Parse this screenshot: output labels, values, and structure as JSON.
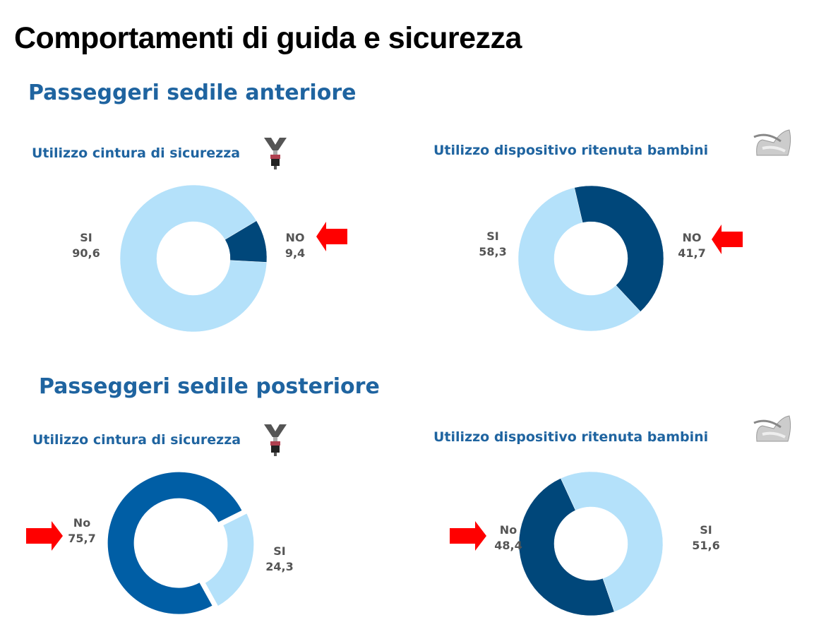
{
  "title": "Comportamenti di guida e sicurezza",
  "sections": [
    {
      "label": "Passeggeri sedile anteriore"
    },
    {
      "label": "Passeggeri sedile posteriore"
    }
  ],
  "colors": {
    "dark": "#00477a",
    "light": "#b4e1fa",
    "medium": "#005ea5",
    "arrow": "#ff0000"
  },
  "chart_data": [
    {
      "type": "pie",
      "title": "Utilizzo cintura di sicurezza",
      "section": "Passeggeri sedile anteriore",
      "labels": [
        "SI",
        "NO"
      ],
      "values": [
        90.6,
        9.4
      ],
      "display": [
        "90,6",
        "9,4"
      ],
      "icon": "seatbelt-icon",
      "highlight": "NO"
    },
    {
      "type": "pie",
      "title": "Utilizzo dispositivo ritenuta bambini",
      "section": "Passeggeri sedile anteriore",
      "labels": [
        "SI",
        "NO"
      ],
      "values": [
        58.3,
        41.7
      ],
      "display": [
        "58,3",
        "41,7"
      ],
      "icon": "child-seat-icon",
      "highlight": "NO"
    },
    {
      "type": "pie",
      "title": "Utilizzo cintura di sicurezza",
      "section": "Passeggeri sedile posteriore",
      "labels": [
        "No",
        "SI"
      ],
      "values": [
        75.7,
        24.3
      ],
      "display": [
        "75,7",
        "24,3"
      ],
      "icon": "seatbelt-icon",
      "highlight": "No"
    },
    {
      "type": "pie",
      "title": "Utilizzo dispositivo ritenuta bambini",
      "section": "Passeggeri sedile posteriore",
      "labels": [
        "No",
        "SI"
      ],
      "values": [
        48.4,
        51.6
      ],
      "display": [
        "48,4",
        "51,6"
      ],
      "icon": "child-seat-icon",
      "highlight": "No"
    }
  ]
}
